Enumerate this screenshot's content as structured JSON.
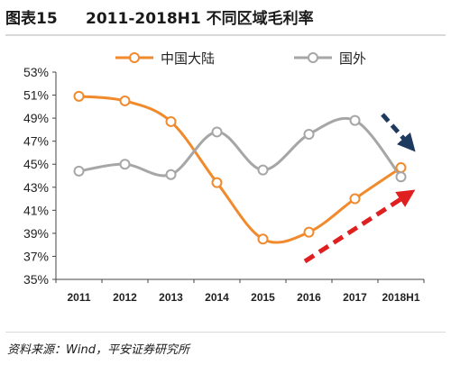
{
  "figure": {
    "label": "图表15",
    "title": "2011-2018H1 不同区域毛利率",
    "source": "资料来源：Wind，平安证券研究所"
  },
  "colors": {
    "mainland": "#f08a2c",
    "overseas": "#a6a6a6",
    "arrow_down": "#1f3a5f",
    "arrow_up": "#e02020"
  },
  "chart_data": {
    "type": "line",
    "categories": [
      "2011",
      "2012",
      "2013",
      "2014",
      "2015",
      "2016",
      "2017",
      "2018H1"
    ],
    "series": [
      {
        "name": "中国大陆",
        "values": [
          50.9,
          50.5,
          48.7,
          43.4,
          38.5,
          39.1,
          42.0,
          44.7
        ]
      },
      {
        "name": "国外",
        "values": [
          44.4,
          45.0,
          44.1,
          47.8,
          44.5,
          47.6,
          48.8,
          43.9
        ]
      }
    ],
    "ylim": [
      35,
      53
    ],
    "yticks": [
      "35%",
      "37%",
      "39%",
      "41%",
      "43%",
      "45%",
      "47%",
      "49%",
      "51%",
      "53%"
    ],
    "legend_position": "top",
    "grid": false,
    "annotations": [
      "downward dark-blue dashed arrow near 2018H1 (国外 falling)",
      "upward red dashed arrow from 2015 to 2018H1 (中国大陆 rising)"
    ]
  }
}
